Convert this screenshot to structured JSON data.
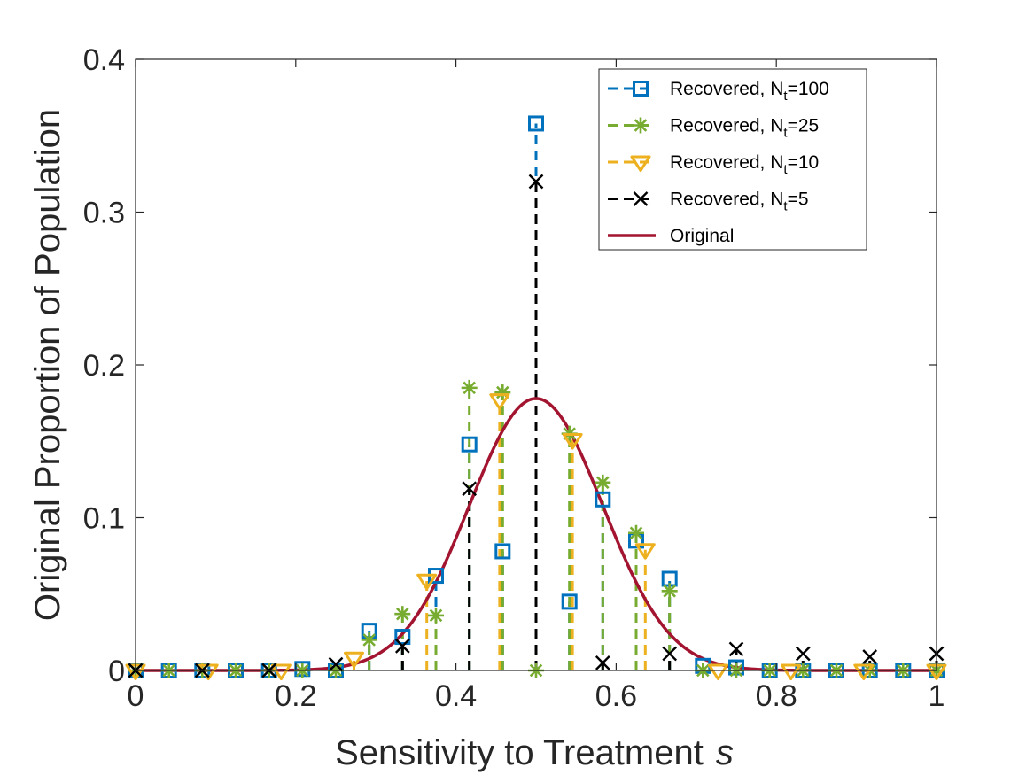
{
  "chart_data": {
    "type": "line",
    "title": "",
    "xlabel": "Sensitivity to Treatment",
    "xlabel_symbol": "s",
    "ylabel": "Original Proportion of Population",
    "xlim": [
      0,
      1
    ],
    "ylim": [
      0,
      0.4
    ],
    "xticks": [
      0,
      0.2,
      0.4,
      0.6,
      0.8,
      1
    ],
    "xtick_labels": [
      "0",
      "0.2",
      "0.4",
      "0.6",
      "0.8",
      "1"
    ],
    "yticks": [
      0,
      0.1,
      0.2,
      0.3,
      0.4
    ],
    "ytick_labels": [
      "0",
      "0.1",
      "0.2",
      "0.3",
      "0.4"
    ],
    "grid": false,
    "legend_position": "top-right",
    "series": [
      {
        "name": "Recovered, N",
        "name_subscript": "t",
        "name_suffix": "=100",
        "color": "#0072BD",
        "marker": "square",
        "style": "stem-dashed",
        "x": [
          0.0,
          0.0417,
          0.0833,
          0.125,
          0.1667,
          0.2083,
          0.25,
          0.2917,
          0.3333,
          0.375,
          0.4167,
          0.4583,
          0.5,
          0.5417,
          0.5833,
          0.625,
          0.6667,
          0.7083,
          0.75,
          0.7917,
          0.8333,
          0.875,
          0.9167,
          0.9583,
          1.0
        ],
        "y": [
          0.0,
          0.0,
          0.0,
          0.0,
          0.0,
          0.001,
          0.0,
          0.026,
          0.022,
          0.062,
          0.148,
          0.078,
          0.358,
          0.045,
          0.112,
          0.085,
          0.06,
          0.003,
          0.002,
          0.0,
          0.0,
          0.0,
          0.0,
          0.0,
          0.0
        ]
      },
      {
        "name": "Recovered, N",
        "name_subscript": "t",
        "name_suffix": "=25",
        "color": "#77AC30",
        "marker": "asterisk",
        "style": "stem-dashed",
        "x": [
          0.0,
          0.0417,
          0.0833,
          0.125,
          0.1667,
          0.2083,
          0.25,
          0.2917,
          0.3333,
          0.375,
          0.4167,
          0.4583,
          0.5,
          0.5417,
          0.5833,
          0.625,
          0.6667,
          0.7083,
          0.75,
          0.7917,
          0.8333,
          0.875,
          0.9167,
          0.9583,
          1.0
        ],
        "y": [
          0.0,
          0.0,
          0.0,
          0.0,
          0.0,
          0.0,
          0.0,
          0.02,
          0.037,
          0.036,
          0.185,
          0.182,
          0.0,
          0.155,
          0.123,
          0.09,
          0.052,
          0.0,
          0.0,
          0.0,
          0.0,
          0.0,
          0.0,
          0.0,
          0.0
        ]
      },
      {
        "name": "Recovered, N",
        "name_subscript": "t",
        "name_suffix": "=10",
        "color": "#EDB120",
        "marker": "triangle-down",
        "style": "stem-dashed",
        "x": [
          0.0,
          0.0909,
          0.1818,
          0.2727,
          0.3636,
          0.4545,
          0.5455,
          0.6364,
          0.7273,
          0.8182,
          0.9091,
          1.0
        ],
        "y": [
          0.0,
          0.0,
          0.0,
          0.008,
          0.059,
          0.177,
          0.151,
          0.079,
          0.0,
          0.0,
          0.0,
          0.0
        ]
      },
      {
        "name": "Recovered, N",
        "name_subscript": "t",
        "name_suffix": "=5",
        "color": "#000000",
        "marker": "x",
        "style": "stem-dashed",
        "x": [
          0.0,
          0.0833,
          0.1667,
          0.25,
          0.3333,
          0.4167,
          0.5,
          0.5833,
          0.6667,
          0.75,
          0.8333,
          0.9167,
          1.0
        ],
        "y": [
          0.0,
          0.0,
          0.0,
          0.004,
          0.016,
          0.119,
          0.32,
          0.005,
          0.011,
          0.014,
          0.011,
          0.009,
          0.011
        ]
      },
      {
        "name": "Original",
        "color": "#A2142F",
        "style": "solid-line",
        "distribution": "normal",
        "mean": 0.5,
        "std": 0.0833,
        "peak": 0.178
      }
    ]
  }
}
